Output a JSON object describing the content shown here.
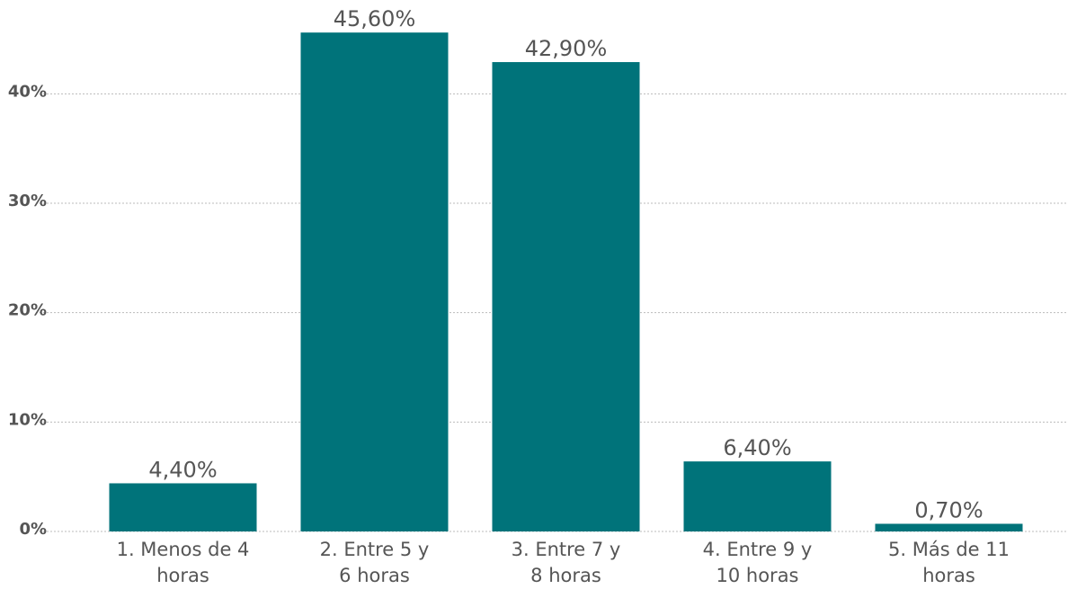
{
  "chart_data": {
    "type": "bar",
    "categories": [
      "1. Menos de 4\nhoras",
      "2. Entre 5 y\n6 horas",
      "3. Entre 7 y\n8 horas",
      "4. Entre 9 y\n10 horas",
      "5. Más de 11\nhoras"
    ],
    "values": [
      4.4,
      45.6,
      42.9,
      6.4,
      0.7
    ],
    "value_labels": [
      "4,40%",
      "45,60%",
      "42,90%",
      "6,40%",
      "0,70%"
    ],
    "color": "#00737a",
    "ylim": [
      0,
      48
    ],
    "yticks": [
      {
        "value": 0,
        "label": "0%"
      },
      {
        "value": 10,
        "label": "10%"
      },
      {
        "value": 20,
        "label": "20%"
      },
      {
        "value": 30,
        "label": "30%"
      },
      {
        "value": 40,
        "label": "40%"
      }
    ],
    "grid": true
  }
}
